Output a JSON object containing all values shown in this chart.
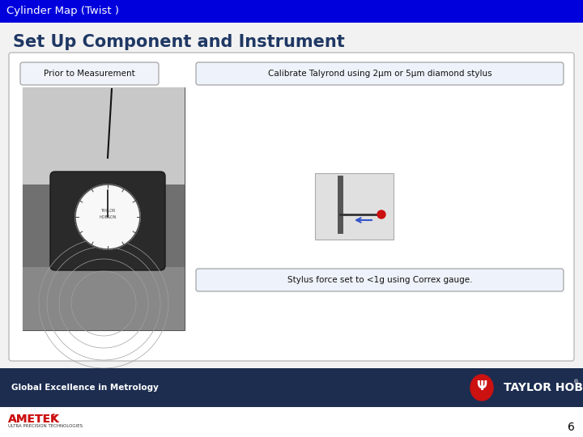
{
  "title_bar_text": "Cylinder Map (Twist )",
  "title_bar_color": "#0000DD",
  "title_bar_text_color": "#FFFFFF",
  "main_title": "Set Up Component and Instrument",
  "main_title_color": "#1F3864",
  "slide_bg": "#F2F2F2",
  "content_box_bg": "#FFFFFF",
  "content_box_border": "#BBBBBB",
  "label_prior": "Prior to Measurement",
  "label_calibrate": "Calibrate Talyrond using 2μm or 5μm diamond stylus",
  "label_stylus": "Stylus force set to <1g using Correx gauge.",
  "footer_left": "Global Excellence in Metrology",
  "footer_left_color": "#FFFFFF",
  "footer_bg": "#1C2D50",
  "page_number": "6",
  "page_number_color": "#000000",
  "ametek_text": "AMETEK",
  "ametek_reg": "®",
  "ametek_sub": "ULTRA PRECISION TECHNOLOGIES",
  "taylor_hobson_text": "TAYLOR HOBSON",
  "taylor_hobson_reg": "®"
}
